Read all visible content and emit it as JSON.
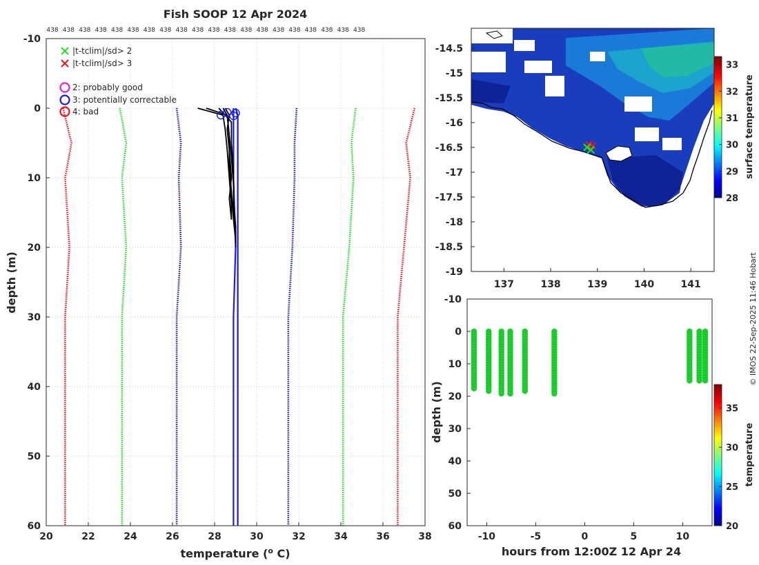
{
  "page": {
    "title": "Fish SOOP 12 Apr 2024",
    "copyright": "© IMOS 22-Sep-2025 11:46 Hobart"
  },
  "chart_data": [
    {
      "id": "profile",
      "type": "line",
      "title": "Fish SOOP 12 Apr 2024",
      "xlabel": "temperature (",
      "xlabel_sup": "o",
      "xlabel_end": " C)",
      "ylabel": "depth (m)",
      "xlim": [
        20,
        38
      ],
      "ylim": [
        -10,
        60
      ],
      "y_reversed": true,
      "xticks": [
        20,
        22,
        24,
        26,
        28,
        30,
        32,
        34,
        36,
        38
      ],
      "yticks": [
        -10,
        0,
        10,
        20,
        30,
        40,
        50,
        60
      ],
      "grid": true,
      "top_annotation_value": "438",
      "top_annotation_count": 20,
      "legend": [
        {
          "label": "|t-tclim|/sd> 2",
          "marker": "x",
          "color": "#22dd22"
        },
        {
          "label": "|t-tclim|/sd> 3",
          "marker": "x",
          "color": "#e8141e"
        },
        {
          "label": "2: probably good",
          "marker": "o",
          "color": "#e020e0"
        },
        {
          "label": "3: potentially correctable",
          "marker": "o",
          "color": "#1a1ae6"
        },
        {
          "label": "4: bad",
          "marker": "o",
          "color": "#e8141e"
        }
      ],
      "climatology_lines": [
        {
          "name": "clim -3sd",
          "color": "#e8141e",
          "depth": [
            0,
            5,
            10,
            20,
            30,
            60
          ],
          "temp": [
            20.8,
            21.2,
            20.9,
            21.1,
            20.9,
            20.9
          ]
        },
        {
          "name": "clim -2sd",
          "color": "#22dd22",
          "depth": [
            0,
            5,
            10,
            20,
            30,
            60
          ],
          "temp": [
            23.5,
            23.8,
            23.6,
            23.8,
            23.6,
            23.6
          ]
        },
        {
          "name": "clim -1sd",
          "color": "#1a1aa8",
          "depth": [
            0,
            5,
            10,
            20,
            30,
            60
          ],
          "temp": [
            26.2,
            26.4,
            26.3,
            26.4,
            26.2,
            26.2
          ]
        },
        {
          "name": "clim +1sd",
          "color": "#1a1aa8",
          "depth": [
            0,
            5,
            10,
            20,
            30,
            60
          ],
          "temp": [
            31.9,
            31.8,
            31.8,
            31.7,
            31.5,
            31.5
          ]
        },
        {
          "name": "clim +2sd",
          "color": "#22dd22",
          "depth": [
            0,
            5,
            10,
            20,
            30,
            60
          ],
          "temp": [
            34.7,
            34.5,
            34.6,
            34.4,
            34.1,
            34.1
          ]
        },
        {
          "name": "clim +3sd",
          "color": "#e8141e",
          "depth": [
            0,
            5,
            10,
            20,
            30,
            60
          ],
          "temp": [
            37.5,
            37.1,
            37.3,
            37.0,
            36.7,
            36.7
          ]
        }
      ],
      "profiles_black": [
        {
          "depth": [
            0,
            1,
            3,
            6,
            10,
            14,
            16
          ],
          "temp": [
            27.2,
            28.4,
            28.5,
            28.6,
            28.7,
            28.8,
            28.8
          ]
        },
        {
          "depth": [
            0,
            1,
            4,
            8,
            12,
            16,
            19
          ],
          "temp": [
            27.6,
            28.6,
            28.7,
            28.7,
            28.8,
            28.9,
            29.0
          ]
        },
        {
          "depth": [
            0,
            2,
            5,
            9,
            13,
            17,
            20
          ],
          "temp": [
            28.2,
            28.8,
            28.8,
            28.9,
            28.9,
            29.0,
            29.0
          ]
        },
        {
          "depth": [
            0,
            1,
            4,
            7,
            11,
            15,
            18
          ],
          "temp": [
            28.4,
            28.6,
            28.7,
            28.8,
            28.9,
            28.9,
            29.0
          ]
        },
        {
          "depth": [
            0,
            1,
            3,
            6,
            10,
            13,
            16
          ],
          "temp": [
            28.5,
            28.7,
            28.6,
            28.7,
            28.8,
            28.7,
            28.8
          ]
        }
      ],
      "profiles_blue": [
        {
          "depth": [
            0,
            1,
            5,
            10,
            20,
            30,
            60
          ],
          "temp": [
            28.9,
            28.9,
            28.9,
            28.9,
            29.0,
            28.9,
            28.9
          ]
        },
        {
          "depth": [
            0,
            1,
            5,
            10,
            20,
            30,
            60
          ],
          "temp": [
            29.0,
            29.1,
            29.1,
            29.1,
            29.1,
            29.1,
            29.1
          ]
        }
      ],
      "flag_circles": [
        {
          "temp": 28.3,
          "depth": 1.0,
          "color": "#1a1ae6"
        },
        {
          "temp": 28.6,
          "depth": 0.6,
          "color": "#1a1ae6"
        },
        {
          "temp": 28.9,
          "depth": 1.1,
          "color": "#1a1ae6"
        },
        {
          "temp": 29.0,
          "depth": 0.7,
          "color": "#1a1ae6"
        }
      ]
    },
    {
      "id": "map",
      "type": "heatmap",
      "colorbar_label": "surface temperature",
      "xlim": [
        136.3,
        141.5
      ],
      "ylim": [
        -19,
        -14.1
      ],
      "xticks": [
        137,
        138,
        139,
        140,
        141
      ],
      "yticks": [
        -14.5,
        -15,
        -15.5,
        -16,
        -16.5,
        -17,
        -17.5,
        -18,
        -18.5,
        -19
      ],
      "clim": [
        28,
        33.3
      ],
      "colorbar_ticks": [
        28,
        29,
        30,
        31,
        32,
        33
      ],
      "markers": [
        {
          "lon": 138.82,
          "lat": -16.45,
          "color": "#e8141e"
        },
        {
          "lon": 138.9,
          "lat": -16.47,
          "color": "#e8141e"
        },
        {
          "lon": 138.86,
          "lat": -16.55,
          "color": "#22dd22"
        },
        {
          "lon": 138.78,
          "lat": -16.5,
          "color": "#22dd22"
        }
      ]
    },
    {
      "id": "timeline",
      "type": "scatter",
      "xlabel": "hours from 12:00Z 12 Apr 24",
      "ylabel": "depth (m)",
      "colorbar_label": "temperature",
      "xlim": [
        -12,
        13
      ],
      "ylim": [
        -10,
        60
      ],
      "y_reversed": true,
      "xticks": [
        -10,
        -5,
        0,
        5,
        10
      ],
      "yticks": [
        -10,
        0,
        10,
        20,
        30,
        40,
        50,
        60
      ],
      "clim": [
        20,
        38
      ],
      "colorbar_ticks": [
        20,
        25,
        30,
        35
      ],
      "point_color": "#18d22c",
      "columns": [
        {
          "hour": -11.3,
          "max_depth": 18
        },
        {
          "hour": -9.8,
          "max_depth": 18.5
        },
        {
          "hour": -8.5,
          "max_depth": 19.5
        },
        {
          "hour": -7.6,
          "max_depth": 19.5
        },
        {
          "hour": -6.1,
          "max_depth": 19
        },
        {
          "hour": -3.1,
          "max_depth": 19.5
        },
        {
          "hour": 10.7,
          "max_depth": 15.5
        },
        {
          "hour": 11.7,
          "max_depth": 15.5
        },
        {
          "hour": 12.3,
          "max_depth": 15.5
        }
      ]
    }
  ]
}
